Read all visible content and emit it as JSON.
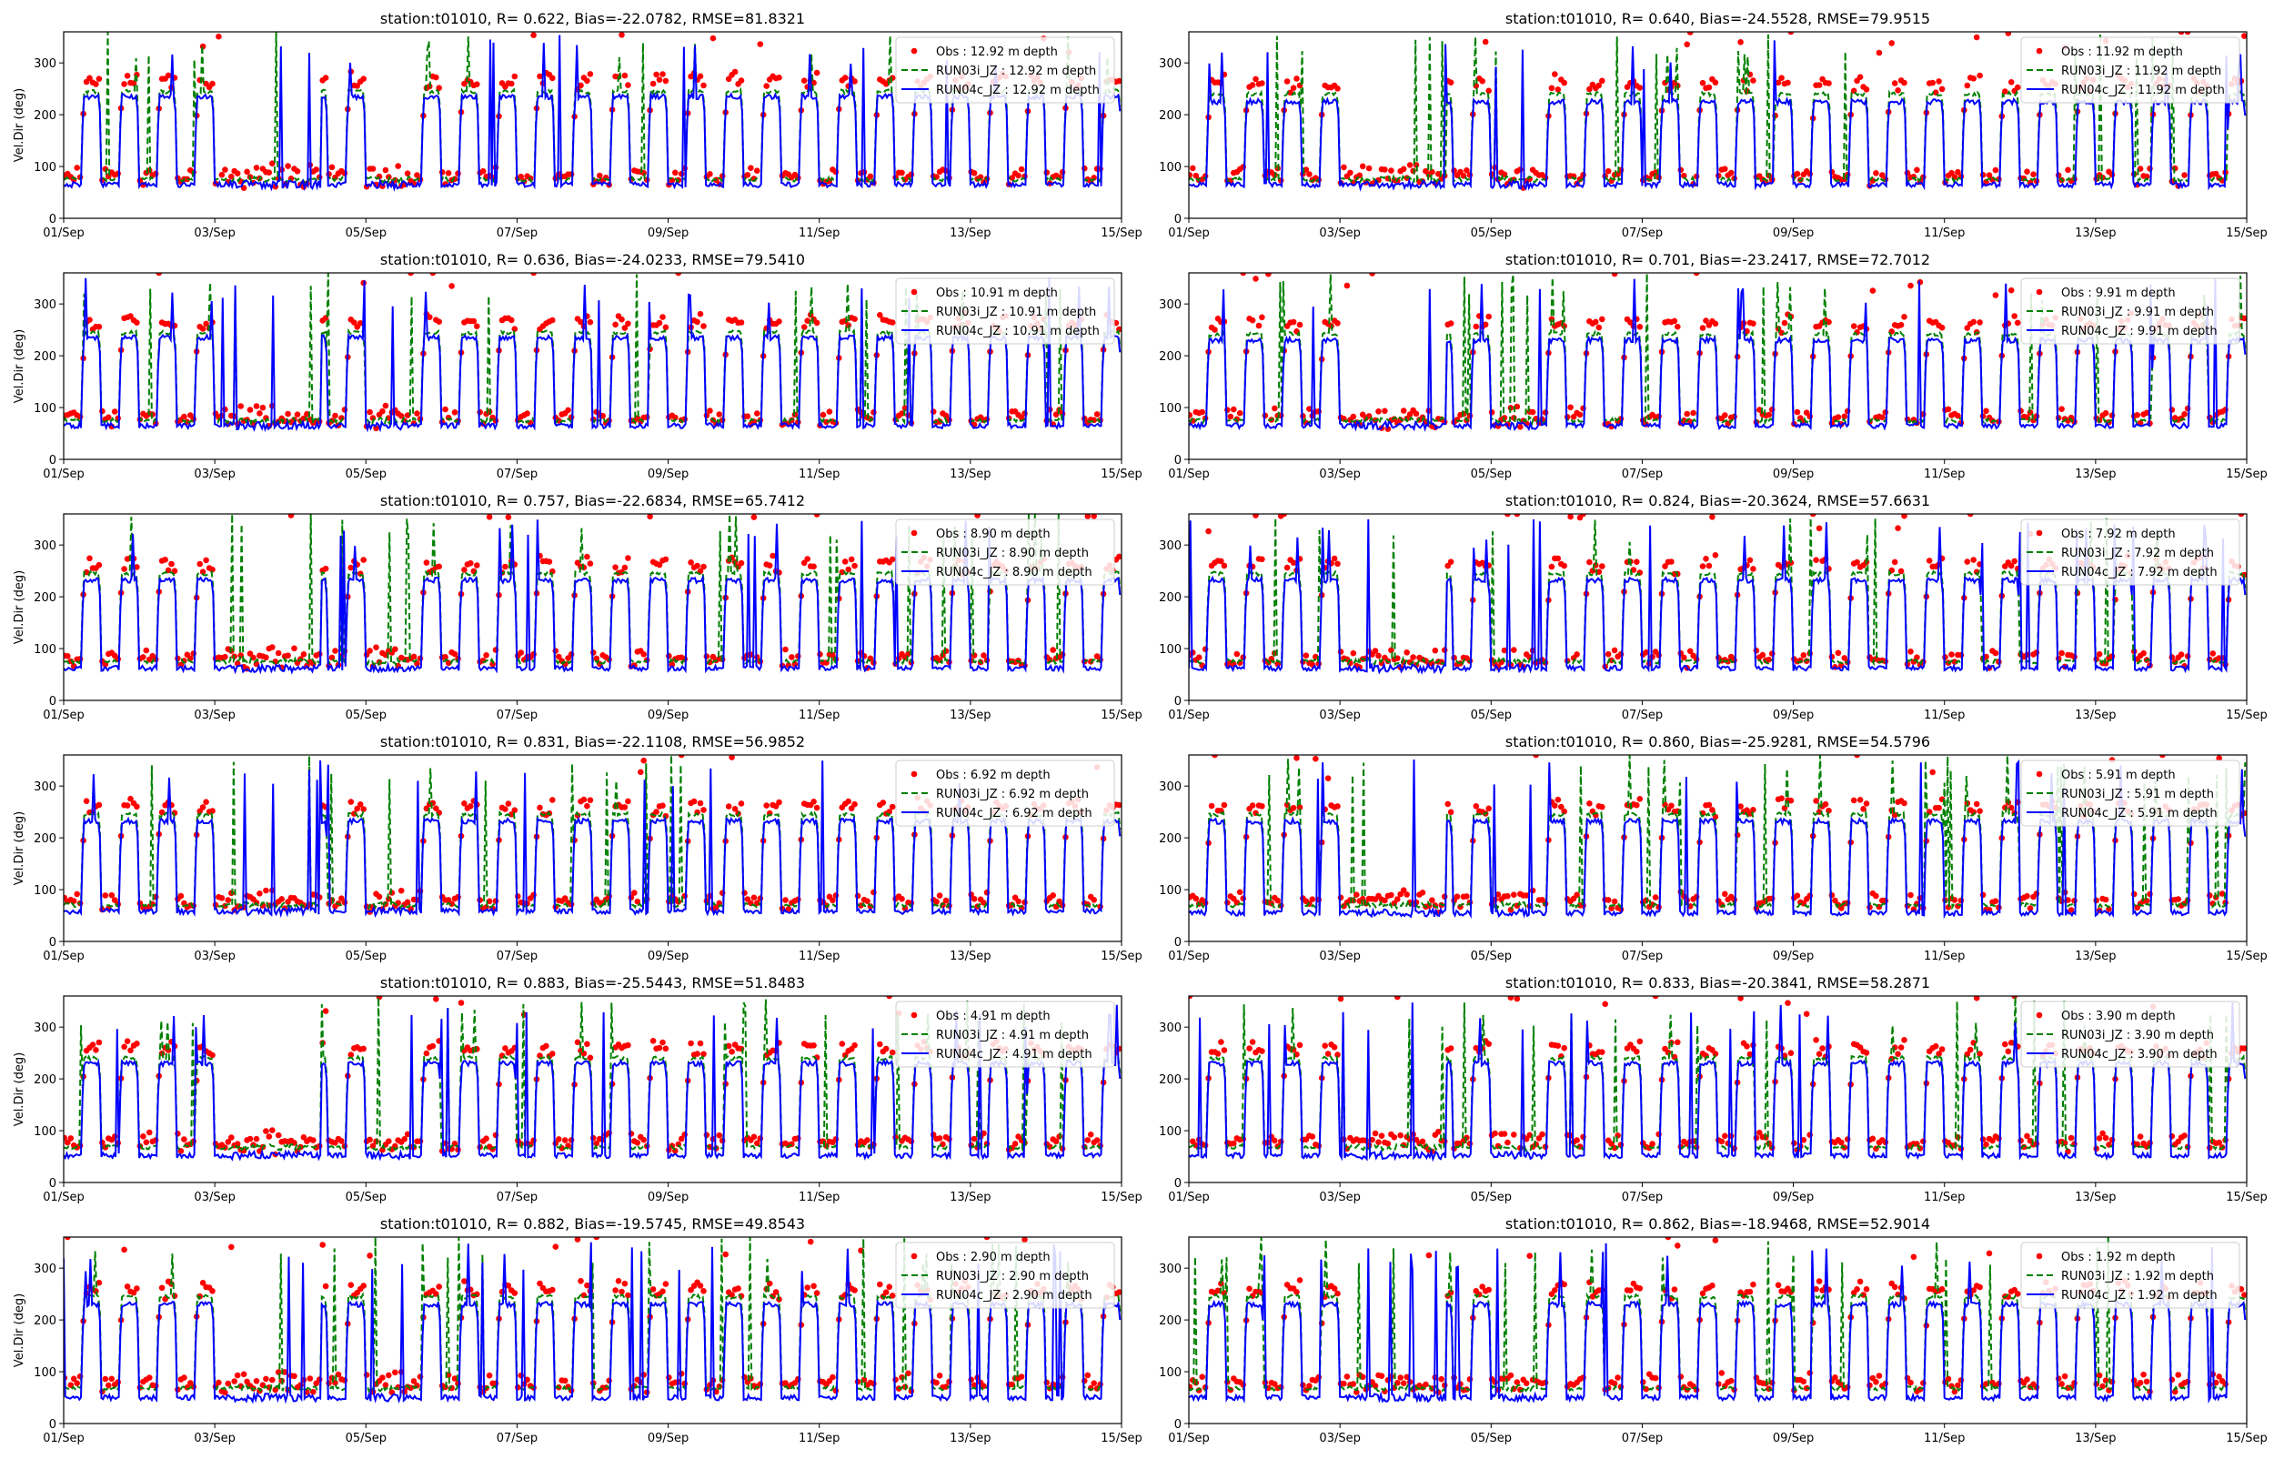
{
  "figure": {
    "series_style": [
      {
        "name": "Obs",
        "color": "#ff0000",
        "kind": "dots"
      },
      {
        "name": "RUN03i_JZ",
        "color": "#008000",
        "kind": "dashed"
      },
      {
        "name": "RUN04c_JZ",
        "color": "#0000ff",
        "kind": "solid"
      }
    ],
    "x_ticks": [
      "01/Sep",
      "03/Sep",
      "05/Sep",
      "07/Sep",
      "09/Sep",
      "11/Sep",
      "13/Sep",
      "15/Sep"
    ],
    "y_ticks": [
      0,
      100,
      200,
      300
    ],
    "ylabel": "Vel.Dir (deg)"
  },
  "chart_data": [
    {
      "type": "line",
      "title": "station:t01010, R= 0.622, Bias=-22.0782, RMSE=81.8321",
      "ylabel": "Vel.Dir (deg)",
      "xlim": [
        "2022-09-01",
        "2022-09-15"
      ],
      "ylim": [
        0,
        360
      ],
      "legend": "top-right",
      "series": [
        {
          "name": "Obs : 12.92 m depth"
        },
        {
          "name": "RUN03i_JZ : 12.92 m depth"
        },
        {
          "name": "RUN04c_JZ : 12.92 m depth"
        }
      ],
      "levels": {
        "obs": [
          82,
          265
        ],
        "run03": [
          75,
          245
        ],
        "run04": [
          65,
          235
        ]
      }
    },
    {
      "type": "line",
      "title": "station:t01010, R= 0.640, Bias=-24.5528, RMSE=79.9515",
      "ylabel": "",
      "xlim": [
        "2022-09-01",
        "2022-09-15"
      ],
      "ylim": [
        0,
        360
      ],
      "legend": "top-right",
      "series": [
        {
          "name": "Obs : 11.92 m depth"
        },
        {
          "name": "RUN03i_JZ : 11.92 m depth"
        },
        {
          "name": "RUN04c_JZ : 11.92 m depth"
        }
      ],
      "levels": {
        "obs": [
          82,
          260
        ],
        "run03": [
          75,
          240
        ],
        "run04": [
          65,
          225
        ]
      }
    },
    {
      "type": "line",
      "title": "station:t01010, R= 0.636, Bias=-24.0233, RMSE=79.5410",
      "ylabel": "Vel.Dir (deg)",
      "xlim": [
        "2022-09-01",
        "2022-09-15"
      ],
      "ylim": [
        0,
        360
      ],
      "legend": "top-right",
      "series": [
        {
          "name": "Obs : 10.91 m depth"
        },
        {
          "name": "RUN03i_JZ : 10.91 m depth"
        },
        {
          "name": "RUN04c_JZ : 10.91 m depth"
        }
      ],
      "levels": {
        "obs": [
          82,
          265
        ],
        "run03": [
          75,
          245
        ],
        "run04": [
          65,
          235
        ]
      }
    },
    {
      "type": "line",
      "title": "station:t01010, R= 0.701, Bias=-23.2417, RMSE=72.7012",
      "ylabel": "",
      "xlim": [
        "2022-09-01",
        "2022-09-15"
      ],
      "ylim": [
        0,
        360
      ],
      "legend": "top-right",
      "series": [
        {
          "name": "Obs : 9.91 m depth"
        },
        {
          "name": "RUN03i_JZ : 9.91 m depth"
        },
        {
          "name": "RUN04c_JZ : 9.91 m depth"
        }
      ],
      "levels": {
        "obs": [
          82,
          262
        ],
        "run03": [
          75,
          242
        ],
        "run04": [
          65,
          230
        ]
      }
    },
    {
      "type": "line",
      "title": "station:t01010, R= 0.757, Bias=-22.6834, RMSE=65.7412",
      "ylabel": "Vel.Dir (deg)",
      "xlim": [
        "2022-09-01",
        "2022-09-15"
      ],
      "ylim": [
        0,
        360
      ],
      "legend": "top-right",
      "series": [
        {
          "name": "Obs : 8.90 m depth"
        },
        {
          "name": "RUN03i_JZ : 8.90 m depth"
        },
        {
          "name": "RUN04c_JZ : 8.90 m depth"
        }
      ],
      "levels": {
        "obs": [
          82,
          262
        ],
        "run03": [
          75,
          245
        ],
        "run04": [
          62,
          232
        ]
      }
    },
    {
      "type": "line",
      "title": "station:t01010, R= 0.824, Bias=-20.3624, RMSE=57.6631",
      "ylabel": "",
      "xlim": [
        "2022-09-01",
        "2022-09-15"
      ],
      "ylim": [
        0,
        360
      ],
      "legend": "top-right",
      "series": [
        {
          "name": "Obs : 7.92 m depth"
        },
        {
          "name": "RUN03i_JZ : 7.92 m depth"
        },
        {
          "name": "RUN04c_JZ : 7.92 m depth"
        }
      ],
      "levels": {
        "obs": [
          82,
          262
        ],
        "run03": [
          75,
          245
        ],
        "run04": [
          62,
          232
        ]
      }
    },
    {
      "type": "line",
      "title": "station:t01010, R= 0.831, Bias=-22.1108, RMSE=56.9852",
      "ylabel": "Vel.Dir (deg)",
      "xlim": [
        "2022-09-01",
        "2022-09-15"
      ],
      "ylim": [
        0,
        360
      ],
      "legend": "top-right",
      "series": [
        {
          "name": "Obs : 6.92 m depth"
        },
        {
          "name": "RUN03i_JZ : 6.92 m depth"
        },
        {
          "name": "RUN04c_JZ : 6.92 m depth"
        }
      ],
      "levels": {
        "obs": [
          78,
          260
        ],
        "run03": [
          70,
          245
        ],
        "run04": [
          58,
          232
        ]
      }
    },
    {
      "type": "line",
      "title": "station:t01010, R= 0.860, Bias=-25.9281, RMSE=54.5796",
      "ylabel": "",
      "xlim": [
        "2022-09-01",
        "2022-09-15"
      ],
      "ylim": [
        0,
        360
      ],
      "legend": "top-right",
      "series": [
        {
          "name": "Obs : 5.91 m depth"
        },
        {
          "name": "RUN03i_JZ : 5.91 m depth"
        },
        {
          "name": "RUN04c_JZ : 5.91 m depth"
        }
      ],
      "levels": {
        "obs": [
          78,
          258
        ],
        "run03": [
          70,
          245
        ],
        "run04": [
          55,
          232
        ]
      }
    },
    {
      "type": "line",
      "title": "station:t01010, R= 0.883, Bias=-25.5443, RMSE=51.8483",
      "ylabel": "Vel.Dir (deg)",
      "xlim": [
        "2022-09-01",
        "2022-09-15"
      ],
      "ylim": [
        0,
        360
      ],
      "legend": "top-right",
      "series": [
        {
          "name": "Obs : 4.91 m depth"
        },
        {
          "name": "RUN03i_JZ : 4.91 m depth"
        },
        {
          "name": "RUN04c_JZ : 4.91 m depth"
        }
      ],
      "levels": {
        "obs": [
          78,
          258
        ],
        "run03": [
          68,
          240
        ],
        "run04": [
          52,
          230
        ]
      }
    },
    {
      "type": "line",
      "title": "station:t01010, R= 0.833, Bias=-20.3841, RMSE=58.2871",
      "ylabel": "",
      "xlim": [
        "2022-09-01",
        "2022-09-15"
      ],
      "ylim": [
        0,
        360
      ],
      "legend": "top-right",
      "series": [
        {
          "name": "Obs : 3.90 m depth"
        },
        {
          "name": "RUN03i_JZ : 3.90 m depth"
        },
        {
          "name": "RUN04c_JZ : 3.90 m depth"
        }
      ],
      "levels": {
        "obs": [
          78,
          258
        ],
        "run03": [
          68,
          240
        ],
        "run04": [
          52,
          230
        ]
      }
    },
    {
      "type": "line",
      "title": "station:t01010, R= 0.882, Bias=-19.5745, RMSE=49.8543",
      "ylabel": "Vel.Dir (deg)",
      "xlim": [
        "2022-09-01",
        "2022-09-15"
      ],
      "ylim": [
        0,
        360
      ],
      "legend": "top-right",
      "series": [
        {
          "name": "Obs : 2.90 m depth"
        },
        {
          "name": "RUN03i_JZ : 2.90 m depth"
        },
        {
          "name": "RUN04c_JZ : 2.90 m depth"
        }
      ],
      "levels": {
        "obs": [
          78,
          258
        ],
        "run03": [
          68,
          245
        ],
        "run04": [
          50,
          230
        ]
      }
    },
    {
      "type": "line",
      "title": "station:t01010, R= 0.862, Bias=-18.9468, RMSE=52.9014",
      "ylabel": "",
      "xlim": [
        "2022-09-01",
        "2022-09-15"
      ],
      "ylim": [
        0,
        360
      ],
      "legend": "top-right",
      "series": [
        {
          "name": "Obs : 1.92 m depth"
        },
        {
          "name": "RUN03i_JZ : 1.92 m depth"
        },
        {
          "name": "RUN04c_JZ : 1.92 m depth"
        }
      ],
      "levels": {
        "obs": [
          78,
          258
        ],
        "run03": [
          68,
          245
        ],
        "run04": [
          50,
          230
        ]
      }
    }
  ]
}
